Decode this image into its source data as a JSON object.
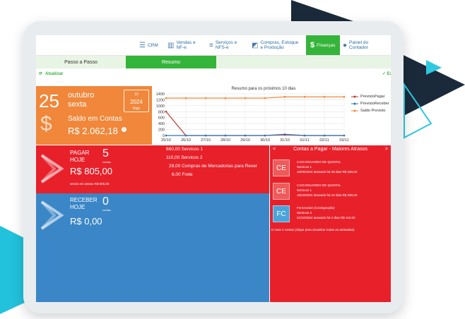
{
  "nav": {
    "items": [
      {
        "label": "CRM",
        "icon": "filter-icon"
      },
      {
        "label": "Vendas e\nNF-e",
        "icon": "bar-chart-icon"
      },
      {
        "label": "Serviços e\nNFS-e",
        "icon": "list-icon"
      },
      {
        "label": "Compras, Estoque\ne Produção",
        "icon": "box-icon"
      },
      {
        "label": "Finanças",
        "icon": "dollar-icon",
        "active": true
      },
      {
        "label": "Painel do\nContador",
        "icon": "user-icon"
      }
    ]
  },
  "subtabs": {
    "passo": "Passo a Passo",
    "resumo": "Resumo"
  },
  "toolbar": {
    "refresh": "Atualizar",
    "exit": "Ex"
  },
  "date_card": {
    "day": "25",
    "month": "outubro",
    "weekday": "sexta",
    "cal_month": "10",
    "cal_year": "2024",
    "cal_today": "Hoje",
    "balance_label": "Saldo em Contas",
    "balance_value": "R$ 2.062,18"
  },
  "chart_data": {
    "type": "line",
    "title": "Resumo para os próximos 10 dias",
    "x": [
      "25/10",
      "26/10",
      "27/10",
      "28/10",
      "29/10",
      "30/10",
      "31/10",
      "01/11",
      "02/11",
      "03/11"
    ],
    "ylim": [
      0,
      1400
    ],
    "yticks": [
      0,
      200,
      400,
      600,
      800,
      1000,
      1200,
      1400
    ],
    "grid": true,
    "legend_position": "right",
    "series": [
      {
        "name": "PrevistoPagar",
        "color": "#c0392b",
        "values": [
          805,
          0,
          0,
          0,
          0,
          0,
          20,
          0,
          0,
          0
        ]
      },
      {
        "name": "PrevistoReceber",
        "color": "#2e74b5",
        "values": [
          0,
          0,
          0,
          0,
          0,
          0,
          40,
          0,
          0,
          0
        ]
      },
      {
        "name": "Saldo Previsto",
        "color": "#f0873a",
        "values": [
          1257,
          1257,
          1257,
          1257,
          1257,
          1257,
          1300,
          1300,
          1300,
          1300
        ]
      }
    ]
  },
  "pagar": {
    "label1": "PAGAR",
    "label2": "HOJE",
    "count": "5",
    "count_label": "contas",
    "amount": "R$ 805,00",
    "late": "sendo em atraso R$ 805,00",
    "items": [
      "660,00 Servicos 1",
      "110,00 Servicos 2",
      "29,00 Compras de Mercadorias para Rever",
      "6,00 Frete"
    ]
  },
  "receber": {
    "label1": "RECEBER",
    "label2": "HOJE",
    "count": "0",
    "count_label": "contas",
    "amount": "R$ 0,00"
  },
  "atrasos": {
    "title": "Contas a Pagar - Maiores Atrasos",
    "nav_left": "<",
    "nav_right": ">",
    "items": [
      {
        "initials": "CE",
        "name": "CAIO EDUARDO DE QUINTAL",
        "service": "Servicos 1",
        "detail": "16/09/2024 atrasado há 39 dias R$ 330,00",
        "color": "#ef5a5a"
      },
      {
        "initials": "CE",
        "name": "CAIO EDUARDO DE QUINTAL",
        "service": "Servicos 1",
        "detail": "15/10/2024 atrasado há 10 dias R$ 330,00",
        "color": "#ef5a5a"
      },
      {
        "initials": "FC",
        "name": "Fornecedor (Consignação)",
        "service": "Servicos 2",
        "detail": "21/10/2024 atrasado há 4 dias R$ 110,00",
        "color": "#4aa3d9"
      }
    ],
    "more": "E mais 2 contas (clique para visualizar todas as atrasadas)"
  }
}
